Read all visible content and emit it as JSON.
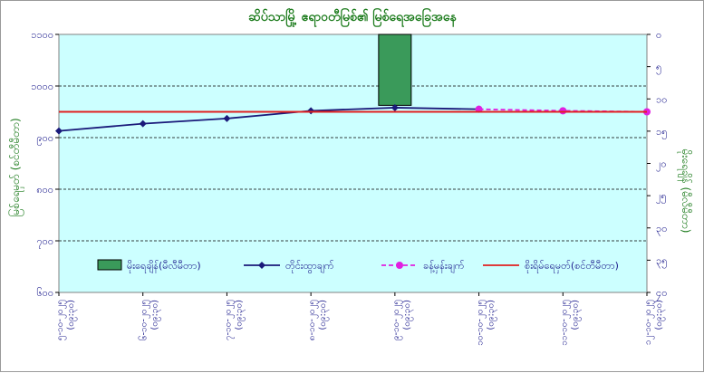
{
  "chart_data": {
    "type": "bar+line",
    "title": "ဆိပ်သာမြို့ ဧရာဝတီမြစ်၏ မြစ်ရေအခြေအနေ",
    "ylabel_left": "မြစ်ရေမှတ် (စင်တီမီတာ)",
    "ylabel_right": "မိုးရေချိန် (မီလီမီတာ)",
    "left_axis": {
      "min": 600,
      "max": 1100,
      "step": 100,
      "tick_labels": [
        "၁၁၀၀",
        "၁၀၀၀",
        "၉၀၀",
        "၈၀၀",
        "၇၀၀",
        "၆၀၀"
      ]
    },
    "right_axis": {
      "min": 0,
      "max": 40,
      "step": 5,
      "inverted": true,
      "tick_labels": [
        "၀",
        "၅",
        "၁၀",
        "၁၅",
        "၂၀",
        "၂၅",
        "၃၀",
        "၃၅",
        "၄၀"
      ]
    },
    "categories": [
      "၅-၁၀-၂၀၂၅ (၀၉:၃၀)",
      "၆-၁၀-၂၀၂၅ (၀၉:၃၀)",
      "၇-၁၀-၂၀၂၅ (၀၉:၃၀)",
      "၈-၁၀-၂၀၂၅ (၀၉:၃၀)",
      "၉-၁၀-၂၀၂၅ (၀၉:၃၀)",
      "၁၀-၁၀-၂၀၂၅ (၀၉:၃၀)",
      "၁၁-၁၀-၂၀၂၅ (၀၉:၃၀)",
      "၁၂-၁၀-၂၀၂၅ (၀၉:၃၀)"
    ],
    "series": [
      {
        "name": "မိုးရေချိန်(မီလီမီတာ)",
        "kind": "bar",
        "axis": "right",
        "color": "#3a9a5a",
        "values": [
          null,
          null,
          null,
          null,
          11,
          null,
          null,
          null
        ]
      },
      {
        "name": "တိုင်းထွာချက်",
        "kind": "line",
        "axis": "left",
        "color": "#1a1a7a",
        "marker": "diamond",
        "values": [
          913,
          927,
          937,
          952,
          958,
          955,
          null,
          null
        ]
      },
      {
        "name": "ခန့်မှန်းချက်",
        "kind": "line",
        "axis": "left",
        "color": "#e020e0",
        "marker": "circle",
        "dashed": true,
        "values": [
          null,
          null,
          null,
          null,
          null,
          955,
          952,
          950
        ]
      },
      {
        "name": "စိုးရိမ်ရေမှတ်(စင်တီမီတာ)",
        "kind": "hline",
        "axis": "left",
        "color": "#e02020",
        "value": 950
      }
    ],
    "plot_background": "#ccffff",
    "grid": true,
    "legend_position": "bottom"
  }
}
